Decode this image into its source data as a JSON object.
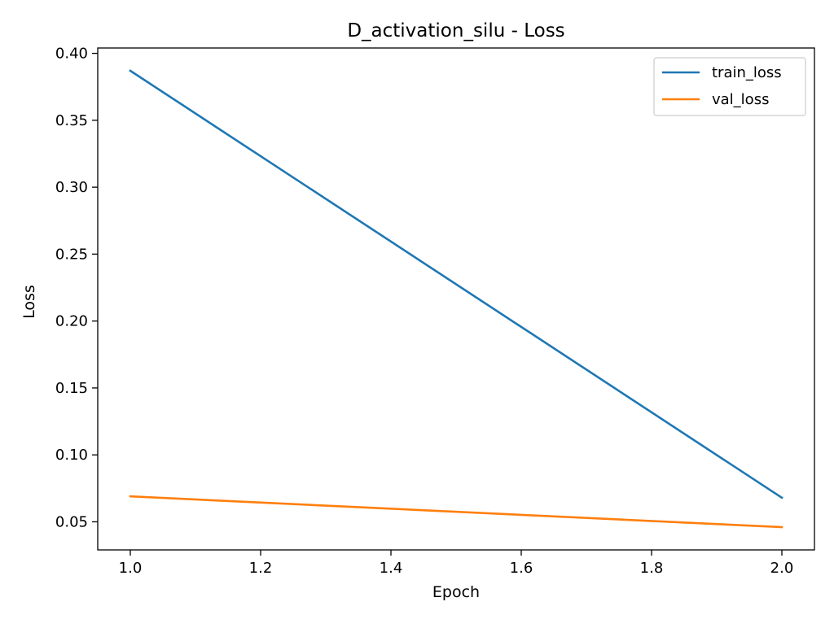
{
  "chart_data": {
    "type": "line",
    "title": "D_activation_silu - Loss",
    "xlabel": "Epoch",
    "ylabel": "Loss",
    "x": [
      1.0,
      2.0
    ],
    "xlim": [
      0.95,
      2.05
    ],
    "ylim": [
      0.029,
      0.404
    ],
    "xticks": [
      1.0,
      1.2,
      1.4,
      1.6,
      1.8,
      2.0
    ],
    "yticks": [
      0.05,
      0.1,
      0.15,
      0.2,
      0.25,
      0.3,
      0.35,
      0.4
    ],
    "xtick_labels": [
      "1.0",
      "1.2",
      "1.4",
      "1.6",
      "1.8",
      "2.0"
    ],
    "ytick_labels": [
      "0.05",
      "0.10",
      "0.15",
      "0.20",
      "0.25",
      "0.30",
      "0.35",
      "0.40"
    ],
    "grid": false,
    "legend_position": "top-right",
    "series": [
      {
        "name": "train_loss",
        "values": [
          0.387,
          0.068
        ],
        "color": "#1f77b4"
      },
      {
        "name": "val_loss",
        "values": [
          0.069,
          0.046
        ],
        "color": "#ff7f0e"
      }
    ]
  }
}
